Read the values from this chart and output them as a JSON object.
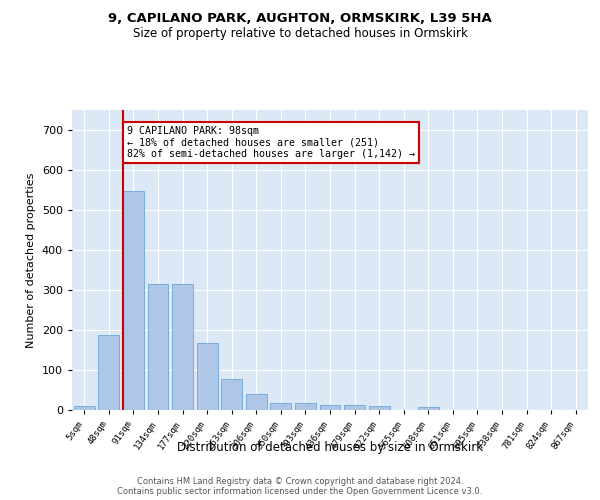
{
  "title1": "9, CAPILANO PARK, AUGHTON, ORMSKIRK, L39 5HA",
  "title2": "Size of property relative to detached houses in Ormskirk",
  "xlabel": "Distribution of detached houses by size in Ormskirk",
  "ylabel": "Number of detached properties",
  "bar_color": "#aec6e8",
  "bar_edge_color": "#5b9bd5",
  "background_color": "#dce8f5",
  "grid_color": "#ffffff",
  "categories": [
    "5sqm",
    "48sqm",
    "91sqm",
    "134sqm",
    "177sqm",
    "220sqm",
    "263sqm",
    "306sqm",
    "350sqm",
    "393sqm",
    "436sqm",
    "479sqm",
    "522sqm",
    "565sqm",
    "608sqm",
    "651sqm",
    "695sqm",
    "738sqm",
    "781sqm",
    "824sqm",
    "867sqm"
  ],
  "values": [
    10,
    187,
    548,
    315,
    315,
    168,
    77,
    40,
    17,
    17,
    12,
    12,
    10,
    0,
    7,
    0,
    0,
    0,
    0,
    0,
    0
  ],
  "ylim": [
    0,
    750
  ],
  "yticks": [
    0,
    100,
    200,
    300,
    400,
    500,
    600,
    700
  ],
  "property_label": "9 CAPILANO PARK: 98sqm",
  "pct_smaller": 18,
  "n_smaller": 251,
  "pct_larger_semi": 82,
  "n_larger_semi": 1142,
  "vline_bin_index": 2,
  "annotation_box_color": "#ffffff",
  "annotation_box_edge": "#cc0000",
  "vline_color": "#cc0000",
  "footer1": "Contains HM Land Registry data © Crown copyright and database right 2024.",
  "footer2": "Contains public sector information licensed under the Open Government Licence v3.0."
}
